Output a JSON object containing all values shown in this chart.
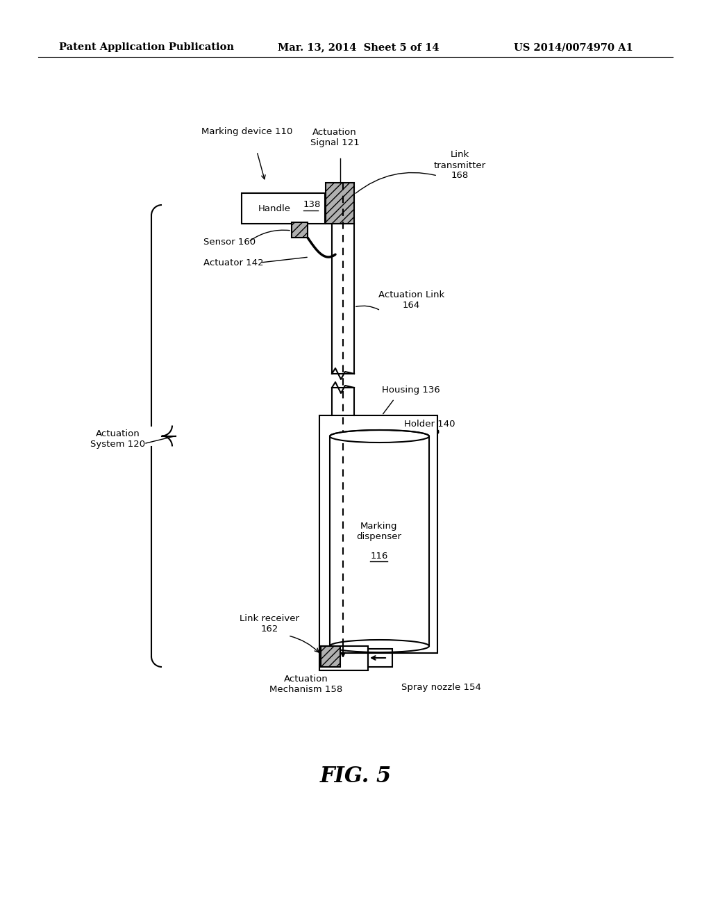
{
  "bg_color": "#ffffff",
  "header_left": "Patent Application Publication",
  "header_center": "Mar. 13, 2014  Sheet 5 of 14",
  "header_right": "US 2014/0074970 A1",
  "fig_label": "FIG. 5",
  "label_fontsize": 9.5,
  "header_fontsize": 10.5,
  "components": {
    "marking_device_label": "Marking device 110",
    "actuation_signal_label": "Actuation\nSignal 121",
    "link_transmitter_label": "Link\ntransmitter\n168",
    "sensor_label": "Sensor 160",
    "actuator_label": "Actuator 142",
    "actuation_link_label": "Actuation Link\n164",
    "housing_label": "Housing 136",
    "holder_label": "Holder 140",
    "marking_dispenser_label": "Marking\ndispenser",
    "marking_dispenser_num": "116",
    "link_receiver_label": "Link receiver\n162",
    "actuation_mechanism_label": "Actuation\nMechanism 158",
    "spray_nozzle_label": "Spray nozzle 154",
    "actuation_system_label": "Actuation\nSystem 120"
  }
}
